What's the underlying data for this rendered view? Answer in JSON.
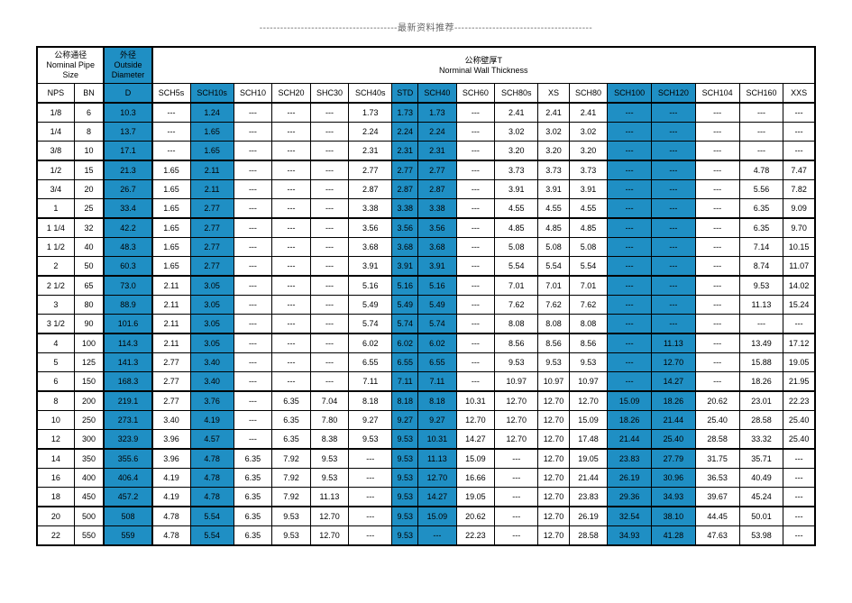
{
  "header_text": "----------------------------------------最新资料推荐----------------------------------------",
  "colors": {
    "accent": "#1f8fc4",
    "border": "#000000",
    "background": "#ffffff"
  },
  "headers": {
    "nominal_pipe_size_cn": "公称通径",
    "nominal_pipe_size_en": "Nominal Pipe",
    "nominal_pipe_size_en2": "Size",
    "outside_diameter_cn": "外径",
    "outside_diameter_en": "Outside",
    "outside_diameter_en2": "Diameter",
    "wall_thickness_cn": "公称壁厚T",
    "wall_thickness_en": "Norminal Wall Thickness",
    "nps": "NPS",
    "bn": "BN",
    "d": "D"
  },
  "schedule_cols": [
    "SCH5s",
    "SCH10s",
    "SCH10",
    "SCH20",
    "SHC30",
    "SCH40s",
    "STD",
    "SCH40",
    "SCH60",
    "SCH80s",
    "XS",
    "SCH80",
    "SCH100",
    "SCH120",
    "SCH104",
    "SCH160",
    "XXS"
  ],
  "blue_col_idx": [
    1,
    6,
    7,
    12,
    13
  ],
  "groups": [
    {
      "rows": [
        {
          "nps": "1/8",
          "bn": "6",
          "d": "10.3",
          "v": [
            "---",
            "1.24",
            "---",
            "---",
            "---",
            "1.73",
            "1.73",
            "1.73",
            "---",
            "2.41",
            "2.41",
            "2.41",
            "---",
            "---",
            "---",
            "---",
            "---"
          ]
        },
        {
          "nps": "1/4",
          "bn": "8",
          "d": "13.7",
          "v": [
            "---",
            "1.65",
            "---",
            "---",
            "---",
            "2.24",
            "2.24",
            "2.24",
            "---",
            "3.02",
            "3.02",
            "3.02",
            "---",
            "---",
            "---",
            "---",
            "---"
          ]
        },
        {
          "nps": "3/8",
          "bn": "10",
          "d": "17.1",
          "v": [
            "---",
            "1.65",
            "---",
            "---",
            "---",
            "2.31",
            "2.31",
            "2.31",
            "---",
            "3.20",
            "3.20",
            "3.20",
            "---",
            "---",
            "---",
            "---",
            "---"
          ]
        }
      ]
    },
    {
      "rows": [
        {
          "nps": "1/2",
          "bn": "15",
          "d": "21.3",
          "v": [
            "1.65",
            "2.11",
            "---",
            "---",
            "---",
            "2.77",
            "2.77",
            "2.77",
            "---",
            "3.73",
            "3.73",
            "3.73",
            "---",
            "---",
            "---",
            "4.78",
            "7.47"
          ]
        },
        {
          "nps": "3/4",
          "bn": "20",
          "d": "26.7",
          "v": [
            "1.65",
            "2.11",
            "---",
            "---",
            "---",
            "2.87",
            "2.87",
            "2.87",
            "---",
            "3.91",
            "3.91",
            "3.91",
            "---",
            "---",
            "---",
            "5.56",
            "7.82"
          ]
        },
        {
          "nps": "1",
          "bn": "25",
          "d": "33.4",
          "v": [
            "1.65",
            "2.77",
            "---",
            "---",
            "---",
            "3.38",
            "3.38",
            "3.38",
            "---",
            "4.55",
            "4.55",
            "4.55",
            "---",
            "---",
            "---",
            "6.35",
            "9.09"
          ]
        }
      ]
    },
    {
      "rows": [
        {
          "nps": "1 1/4",
          "bn": "32",
          "d": "42.2",
          "v": [
            "1.65",
            "2.77",
            "---",
            "---",
            "---",
            "3.56",
            "3.56",
            "3.56",
            "---",
            "4.85",
            "4.85",
            "4.85",
            "---",
            "---",
            "---",
            "6.35",
            "9.70"
          ]
        },
        {
          "nps": "1 1/2",
          "bn": "40",
          "d": "48.3",
          "v": [
            "1.65",
            "2.77",
            "---",
            "---",
            "---",
            "3.68",
            "3.68",
            "3.68",
            "---",
            "5.08",
            "5.08",
            "5.08",
            "---",
            "---",
            "---",
            "7.14",
            "10.15"
          ]
        },
        {
          "nps": "2",
          "bn": "50",
          "d": "60.3",
          "v": [
            "1.65",
            "2.77",
            "---",
            "---",
            "---",
            "3.91",
            "3.91",
            "3.91",
            "---",
            "5.54",
            "5.54",
            "5.54",
            "---",
            "---",
            "---",
            "8.74",
            "11.07"
          ]
        }
      ]
    },
    {
      "rows": [
        {
          "nps": "2 1/2",
          "bn": "65",
          "d": "73.0",
          "v": [
            "2.11",
            "3.05",
            "---",
            "---",
            "---",
            "5.16",
            "5.16",
            "5.16",
            "---",
            "7.01",
            "7.01",
            "7.01",
            "---",
            "---",
            "---",
            "9.53",
            "14.02"
          ]
        },
        {
          "nps": "3",
          "bn": "80",
          "d": "88.9",
          "v": [
            "2.11",
            "3.05",
            "---",
            "---",
            "---",
            "5.49",
            "5.49",
            "5.49",
            "---",
            "7.62",
            "7.62",
            "7.62",
            "---",
            "---",
            "---",
            "11.13",
            "15.24"
          ]
        },
        {
          "nps": "3 1/2",
          "bn": "90",
          "d": "101.6",
          "v": [
            "2.11",
            "3.05",
            "---",
            "---",
            "---",
            "5.74",
            "5.74",
            "5.74",
            "---",
            "8.08",
            "8.08",
            "8.08",
            "---",
            "---",
            "---",
            "---",
            "---"
          ]
        }
      ]
    },
    {
      "rows": [
        {
          "nps": "4",
          "bn": "100",
          "d": "114.3",
          "v": [
            "2.11",
            "3.05",
            "---",
            "---",
            "---",
            "6.02",
            "6.02",
            "6.02",
            "---",
            "8.56",
            "8.56",
            "8.56",
            "---",
            "11.13",
            "---",
            "13.49",
            "17.12"
          ]
        },
        {
          "nps": "5",
          "bn": "125",
          "d": "141.3",
          "v": [
            "2.77",
            "3.40",
            "---",
            "---",
            "---",
            "6.55",
            "6.55",
            "6.55",
            "---",
            "9.53",
            "9.53",
            "9.53",
            "---",
            "12.70",
            "---",
            "15.88",
            "19.05"
          ]
        },
        {
          "nps": "6",
          "bn": "150",
          "d": "168.3",
          "v": [
            "2.77",
            "3.40",
            "---",
            "---",
            "---",
            "7.11",
            "7.11",
            "7.11",
            "---",
            "10.97",
            "10.97",
            "10.97",
            "---",
            "14.27",
            "---",
            "18.26",
            "21.95"
          ]
        }
      ]
    },
    {
      "rows": [
        {
          "nps": "8",
          "bn": "200",
          "d": "219.1",
          "v": [
            "2.77",
            "3.76",
            "---",
            "6.35",
            "7.04",
            "8.18",
            "8.18",
            "8.18",
            "10.31",
            "12.70",
            "12.70",
            "12.70",
            "15.09",
            "18.26",
            "20.62",
            "23.01",
            "22.23"
          ]
        },
        {
          "nps": "10",
          "bn": "250",
          "d": "273.1",
          "v": [
            "3.40",
            "4.19",
            "---",
            "6.35",
            "7.80",
            "9.27",
            "9.27",
            "9.27",
            "12.70",
            "12.70",
            "12.70",
            "15.09",
            "18.26",
            "21.44",
            "25.40",
            "28.58",
            "25.40"
          ]
        },
        {
          "nps": "12",
          "bn": "300",
          "d": "323.9",
          "v": [
            "3.96",
            "4.57",
            "---",
            "6.35",
            "8.38",
            "9.53",
            "9.53",
            "10.31",
            "14.27",
            "12.70",
            "12.70",
            "17.48",
            "21.44",
            "25.40",
            "28.58",
            "33.32",
            "25.40"
          ]
        }
      ]
    },
    {
      "rows": [
        {
          "nps": "14",
          "bn": "350",
          "d": "355.6",
          "v": [
            "3.96",
            "4.78",
            "6.35",
            "7.92",
            "9.53",
            "---",
            "9.53",
            "11.13",
            "15.09",
            "---",
            "12.70",
            "19.05",
            "23.83",
            "27.79",
            "31.75",
            "35.71",
            "---"
          ]
        },
        {
          "nps": "16",
          "bn": "400",
          "d": "406.4",
          "v": [
            "4.19",
            "4.78",
            "6.35",
            "7.92",
            "9.53",
            "---",
            "9.53",
            "12.70",
            "16.66",
            "---",
            "12.70",
            "21.44",
            "26.19",
            "30.96",
            "36.53",
            "40.49",
            "---"
          ]
        },
        {
          "nps": "18",
          "bn": "450",
          "d": "457.2",
          "v": [
            "4.19",
            "4.78",
            "6.35",
            "7.92",
            "11.13",
            "---",
            "9.53",
            "14.27",
            "19.05",
            "---",
            "12.70",
            "23.83",
            "29.36",
            "34.93",
            "39.67",
            "45.24",
            "---"
          ]
        }
      ]
    },
    {
      "rows": [
        {
          "nps": "20",
          "bn": "500",
          "d": "508",
          "v": [
            "4.78",
            "5.54",
            "6.35",
            "9.53",
            "12.70",
            "---",
            "9.53",
            "15.09",
            "20.62",
            "---",
            "12.70",
            "26.19",
            "32.54",
            "38.10",
            "44.45",
            "50.01",
            "---"
          ]
        },
        {
          "nps": "22",
          "bn": "550",
          "d": "559",
          "v": [
            "4.78",
            "5.54",
            "6.35",
            "9.53",
            "12.70",
            "---",
            "9.53",
            "---",
            "22.23",
            "---",
            "12.70",
            "28.58",
            "34.93",
            "41.28",
            "47.63",
            "53.98",
            "---"
          ]
        }
      ]
    }
  ]
}
